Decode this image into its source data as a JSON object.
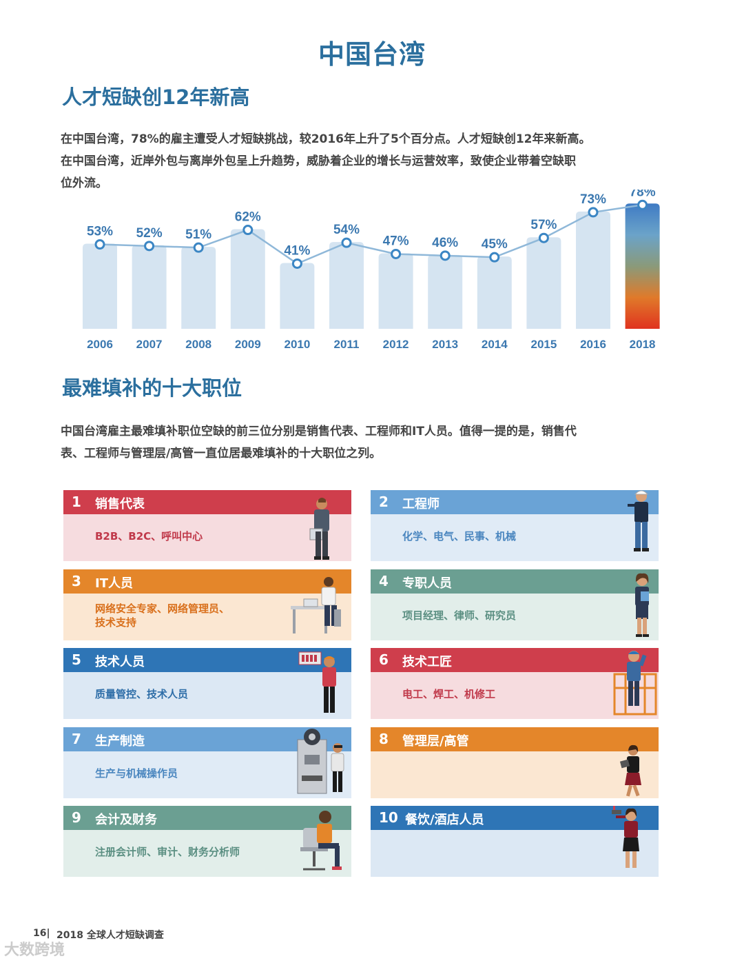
{
  "title": "中国台湾",
  "section1": {
    "heading": "人才短缺创12年新高",
    "para_lines": [
      "在中国台湾，78%的雇主遭受人才短缺挑战，较2016年上升了5个百分点。人才短缺创12年来新高。",
      "在中国台湾，近岸外包与离岸外包呈上升趋势，威胁着企业的增长与运营效率，致使企业带着空缺职",
      "位外流。"
    ]
  },
  "chart_data": {
    "type": "bar",
    "categories": [
      "2006",
      "2007",
      "2008",
      "2009",
      "2010",
      "2011",
      "2012",
      "2013",
      "2014",
      "2015",
      "2016",
      "2018"
    ],
    "values": [
      53,
      52,
      51,
      62,
      41,
      54,
      47,
      46,
      45,
      57,
      73,
      78
    ],
    "value_labels": [
      "53%",
      "52%",
      "51%",
      "62%",
      "41%",
      "54%",
      "47%",
      "46%",
      "45%",
      "57%",
      "73%",
      "78%"
    ],
    "overlay": "line",
    "bar_color": "#d5e4f1",
    "line_color": "#8fb8d9",
    "highlight_gradient": [
      "#3f7bc4",
      "#6ba3c9",
      "#8a9a7a",
      "#e07a2a",
      "#e0331f"
    ],
    "ylim": [
      0,
      80
    ],
    "grid": false
  },
  "section2": {
    "heading": "最难填补的十大职位",
    "para_lines": [
      "中国台湾雇主最难填补职位空缺的前三位分别是销售代表、工程师和IT人员。值得一提的是，销售代",
      "表、工程师与管理层/高管一直位居最难填补的十大职位之列。"
    ]
  },
  "jobs": [
    {
      "num": "1",
      "title": "销售代表",
      "desc": [
        "B2B、B2C、呼叫中心"
      ],
      "head_color": "#cf3e4c",
      "body_color": "#f6dcdf",
      "text_color": "#c0394a",
      "icon": "salesperson-figure-icon"
    },
    {
      "num": "2",
      "title": "工程师",
      "desc": [
        "化学、电气、民事、机械"
      ],
      "head_color": "#6aa3d6",
      "body_color": "#e0ebf6",
      "text_color": "#4a86bf",
      "icon": "engineer-figure-icon"
    },
    {
      "num": "3",
      "title": "IT人员",
      "desc": [
        "网络安全专家、网络管理员、",
        "技术支持"
      ],
      "head_color": "#e4862a",
      "body_color": "#fbe7d2",
      "text_color": "#d9701c",
      "icon": "it-worker-figure-icon"
    },
    {
      "num": "4",
      "title": "专职人员",
      "desc": [
        "项目经理、律师、研究员"
      ],
      "head_color": "#6b9f92",
      "body_color": "#e2eeea",
      "text_color": "#5b8f82",
      "icon": "professional-figure-icon"
    },
    {
      "num": "5",
      "title": "技术人员",
      "desc": [
        "质量管控、技术人员"
      ],
      "head_color": "#2e75b6",
      "body_color": "#dce8f4",
      "text_color": "#2e6ea8",
      "icon": "technician-figure-icon"
    },
    {
      "num": "6",
      "title": "技术工匠",
      "desc": [
        "电工、焊工、机修工"
      ],
      "head_color": "#cf3e4c",
      "body_color": "#f6dcdf",
      "text_color": "#c0394a",
      "icon": "craftsman-figure-icon"
    },
    {
      "num": "7",
      "title": "生产制造",
      "desc": [
        "生产与机械操作员"
      ],
      "head_color": "#6aa3d6",
      "body_color": "#e0ebf6",
      "text_color": "#4a86bf",
      "icon": "machine-operator-figure-icon"
    },
    {
      "num": "8",
      "title": "管理层/高管",
      "desc": [],
      "head_color": "#e4862a",
      "body_color": "#fbe7d2",
      "text_color": "#d9701c",
      "icon": "executive-figure-icon"
    },
    {
      "num": "9",
      "title": "会计及财务",
      "desc": [
        "注册会计师、审计、财务分析师"
      ],
      "head_color": "#6b9f92",
      "body_color": "#e2eeea",
      "text_color": "#5b8f82",
      "icon": "accountant-figure-icon"
    },
    {
      "num": "10",
      "title": "餐饮/酒店人员",
      "desc": [],
      "head_color": "#2e75b6",
      "body_color": "#dce8f4",
      "text_color": "#2e6ea8",
      "icon": "hospitality-figure-icon"
    }
  ],
  "footer": {
    "page": "16",
    "title": "2018 全球人才短缺调查",
    "watermark": "大数跨境"
  }
}
